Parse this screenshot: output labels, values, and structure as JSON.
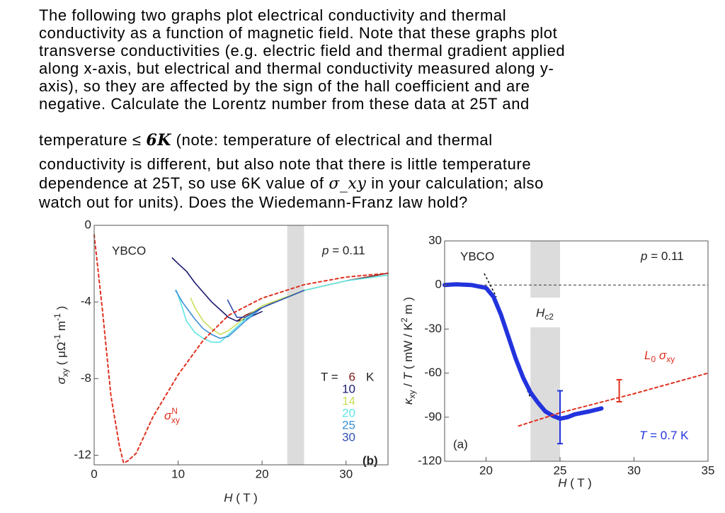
{
  "question": {
    "lines": [
      "The following two graphs plot electrical conductivity and thermal",
      "conductivity as a function of magnetic field. Note that these graphs plot",
      "transverse conductivities (e.g. electric field and thermal gradient applied",
      "along x-axis, but electrical and thermal conductivity measured along y-",
      "axis), so they are affected by the sign of the hall coefficient and are",
      "negative. Calculate the Lorentz number from these data at 25T and",
      [
        "temperature ≤ ",
        "6K",
        " (note: temperature of electrical and thermal"
      ],
      "conductivity is different, but also note that there is little temperature",
      [
        "dependence at 25T, so use 6K value of ",
        "σ_xy",
        " in your calculation; also"
      ],
      "watch out for units). Does the Wiedemann-Franz law hold?"
    ]
  },
  "chart_data": [
    {
      "type": "line",
      "xlabel": [
        "H",
        " ( T )"
      ],
      "ylabel": [
        "σ",
        "xy",
        " ( μΩ",
        "-1",
        " m",
        "-1",
        " )"
      ],
      "xlim": [
        0,
        35
      ],
      "ylim": [
        -12.5,
        0
      ],
      "xticks": [
        0,
        10,
        20,
        30
      ],
      "yticks": [
        0,
        -4,
        -8,
        -12
      ],
      "shaded_band": [
        23,
        25
      ],
      "annotations": [
        "YBCO",
        [
          "p",
          " = 0.11"
        ],
        "(b)",
        [
          "σ",
          "N",
          "xy"
        ]
      ],
      "legend": {
        "title": "T =",
        "unit": "K"
      },
      "series": [
        {
          "name": "6",
          "color": "#7b1a1a",
          "x": [
            17,
            18,
            20,
            22,
            25,
            30,
            35
          ],
          "values": [
            -5.0,
            -4.7,
            -4.3,
            -3.9,
            -3.4,
            -2.9,
            -2.5
          ]
        },
        {
          "name": "10",
          "color": "#1a1a6e",
          "x": [
            9.3,
            10,
            11,
            12,
            13,
            14,
            15,
            16,
            17,
            18,
            20
          ],
          "values": [
            -1.7,
            -2.0,
            -2.4,
            -3.0,
            -3.5,
            -4.0,
            -4.4,
            -4.8,
            -5.0,
            -4.9,
            -4.5
          ]
        },
        {
          "name": "14",
          "color": "#c8e05a",
          "x": [
            11.5,
            12,
            13,
            14,
            15,
            16,
            18,
            20,
            25,
            30
          ],
          "values": [
            -3.8,
            -4.3,
            -5.0,
            -5.4,
            -5.7,
            -5.5,
            -4.8,
            -4.2,
            -3.4,
            -2.9
          ]
        },
        {
          "name": "20",
          "color": "#5ee6e6",
          "x": [
            9.8,
            10.5,
            11,
            12,
            13,
            14,
            15,
            16,
            18,
            20,
            25,
            30,
            35
          ],
          "values": [
            -3.4,
            -4.3,
            -5.0,
            -5.6,
            -5.9,
            -6.1,
            -6.1,
            -5.7,
            -4.9,
            -4.3,
            -3.4,
            -2.9,
            -2.6
          ]
        },
        {
          "name": "25",
          "color": "#3a8fd6",
          "x": [
            9.7,
            10.5,
            12,
            13,
            14,
            15,
            16,
            18,
            20
          ],
          "values": [
            -3.4,
            -4.0,
            -4.9,
            -5.4,
            -5.7,
            -5.9,
            -5.8,
            -5.0,
            -4.3
          ]
        },
        {
          "name": "30",
          "color": "#3050b0",
          "x": [
            15.9,
            16.5,
            17,
            18,
            20,
            25
          ],
          "values": [
            -3.9,
            -4.4,
            -4.8,
            -4.8,
            -4.3,
            -3.4
          ]
        },
        {
          "color": "#e03020",
          "style": "dashed",
          "x": [
            0,
            1,
            2,
            3,
            3.5,
            4,
            5,
            7,
            10,
            13,
            16,
            20,
            25,
            30,
            35
          ],
          "values": [
            -0.5,
            -4.5,
            -8.9,
            -11.5,
            -12.4,
            -12.3,
            -11.9,
            -10.0,
            -7.8,
            -6.0,
            -4.7,
            -3.8,
            -3.1,
            -2.7,
            -2.5
          ]
        }
      ]
    },
    {
      "type": "line",
      "xlabel": [
        "H",
        " ( T )"
      ],
      "ylabel": [
        "κ",
        "xy",
        " / ",
        "T",
        " ( mW / K",
        "2",
        " m )"
      ],
      "xlim": [
        17.2,
        35
      ],
      "ylim": [
        -120,
        30
      ],
      "xticks": [
        20,
        25,
        30,
        35
      ],
      "yticks": [
        30,
        0,
        -30,
        -60,
        -90,
        -120
      ],
      "shaded_band": [
        23,
        25
      ],
      "annotations": [
        "YBCO",
        [
          "p",
          " = 0.11"
        ],
        [
          "H",
          "c2"
        ],
        [
          "L",
          "0",
          " σ",
          "xy"
        ],
        [
          "T",
          " = 0.7 K"
        ],
        "(a)"
      ],
      "series": [
        {
          "color": "#2233dd",
          "x": [
            17.2,
            18,
            19,
            20,
            20.5,
            21,
            21.5,
            22,
            22.5,
            23,
            23.5,
            24,
            24.5,
            25,
            25.5,
            26,
            27,
            27.8
          ],
          "values": [
            0,
            0.5,
            0,
            -2,
            -8,
            -20,
            -35,
            -50,
            -63,
            -73,
            -80,
            -86,
            -89,
            -91,
            -90,
            -88,
            -86,
            -84
          ]
        },
        {
          "color": "#e03020",
          "style": "dashed",
          "x": [
            22.2,
            25,
            30,
            35
          ],
          "values": [
            -96,
            -87,
            -74,
            -60
          ]
        }
      ],
      "error_bars": [
        {
          "color": "#2233dd",
          "x": 25,
          "value": -90,
          "error": 18
        },
        {
          "color": "#e03020",
          "x": 29,
          "value": -72,
          "error": 7.5
        }
      ]
    }
  ]
}
